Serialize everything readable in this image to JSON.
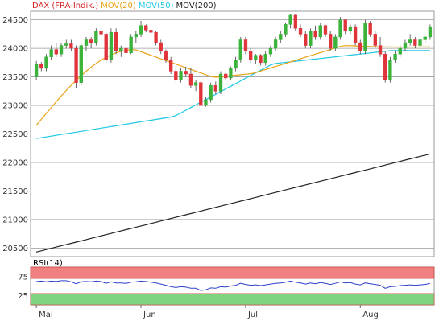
{
  "legend": {
    "items": [
      {
        "label": "DAX (FRA-Indik.)",
        "color": "#d62728"
      },
      {
        "label": "MOV(20)",
        "color": "#e8a317"
      },
      {
        "label": "MOV(50)",
        "color": "#1ec8e6"
      },
      {
        "label": "MOV(200)",
        "color": "#222222"
      }
    ]
  },
  "chart_data": [
    {
      "type": "candlestick",
      "title": "",
      "ylim": [
        20350,
        24650
      ],
      "y_ticks": [
        20500,
        21000,
        21500,
        22000,
        22500,
        23000,
        23500,
        24000,
        24500
      ],
      "x_labels": [
        {
          "label": "Mai",
          "index": 0
        },
        {
          "label": "Jun",
          "index": 21
        },
        {
          "label": "Jul",
          "index": 42
        },
        {
          "label": "Aug",
          "index": 65
        }
      ],
      "grid": true,
      "legend_position": "top-left",
      "colors": {
        "up": "#3bb33b",
        "down": "#e0343b",
        "mov20": "#e8a317",
        "mov50": "#1ec8e6",
        "mov200": "#222222"
      },
      "candles": [
        [
          23500,
          23780,
          23450,
          23720
        ],
        [
          23720,
          23760,
          23600,
          23650
        ],
        [
          23650,
          23900,
          23600,
          23850
        ],
        [
          23850,
          24050,
          23800,
          23980
        ],
        [
          23980,
          24100,
          23850,
          23900
        ],
        [
          23900,
          24100,
          23850,
          24050
        ],
        [
          24050,
          24150,
          24000,
          24080
        ],
        [
          24080,
          24150,
          23950,
          24000
        ],
        [
          24000,
          24050,
          23300,
          23400
        ],
        [
          23400,
          24100,
          23350,
          24050
        ],
        [
          24050,
          24200,
          23950,
          24150
        ],
        [
          24150,
          24200,
          24000,
          24100
        ],
        [
          24100,
          24350,
          24050,
          24300
        ],
        [
          24300,
          24380,
          24150,
          24250
        ],
        [
          24250,
          24280,
          23750,
          23800
        ],
        [
          23800,
          24350,
          23750,
          24280
        ],
        [
          24280,
          24350,
          23900,
          23950
        ],
        [
          23950,
          24050,
          23850,
          24000
        ],
        [
          24000,
          24120,
          23880,
          23920
        ],
        [
          23920,
          24250,
          23900,
          24200
        ],
        [
          24200,
          24300,
          24100,
          24250
        ],
        [
          24250,
          24480,
          24200,
          24400
        ],
        [
          24400,
          24420,
          24280,
          24320
        ],
        [
          24320,
          24350,
          24150,
          24280
        ],
        [
          24280,
          24300,
          24050,
          24100
        ],
        [
          24100,
          24150,
          23900,
          23950
        ],
        [
          23950,
          23980,
          23750,
          23800
        ],
        [
          23800,
          23850,
          23550,
          23600
        ],
        [
          23600,
          23700,
          23400,
          23450
        ],
        [
          23450,
          23650,
          23400,
          23600
        ],
        [
          23600,
          23680,
          23500,
          23550
        ],
        [
          23550,
          23650,
          23300,
          23350
        ],
        [
          23350,
          23450,
          23250,
          23400
        ],
        [
          23400,
          23420,
          22980,
          23000
        ],
        [
          23000,
          23150,
          22980,
          23100
        ],
        [
          23100,
          23400,
          23050,
          23350
        ],
        [
          23350,
          23420,
          23200,
          23250
        ],
        [
          23250,
          23600,
          23200,
          23550
        ],
        [
          23550,
          23600,
          23450,
          23480
        ],
        [
          23480,
          23680,
          23450,
          23650
        ],
        [
          23650,
          23850,
          23600,
          23800
        ],
        [
          23800,
          24200,
          23750,
          24150
        ],
        [
          24150,
          24200,
          23900,
          23950
        ],
        [
          23950,
          24000,
          23750,
          23800
        ],
        [
          23800,
          23900,
          23720,
          23880
        ],
        [
          23880,
          23900,
          23700,
          23750
        ],
        [
          23750,
          23950,
          23700,
          23900
        ],
        [
          23900,
          24050,
          23850,
          24000
        ],
        [
          24000,
          24200,
          23950,
          24150
        ],
        [
          24150,
          24300,
          24100,
          24250
        ],
        [
          24250,
          24450,
          24200,
          24420
        ],
        [
          24420,
          24600,
          24350,
          24580
        ],
        [
          24580,
          24600,
          24300,
          24350
        ],
        [
          24350,
          24420,
          24200,
          24250
        ],
        [
          24250,
          24300,
          24000,
          24050
        ],
        [
          24050,
          24350,
          24000,
          24300
        ],
        [
          24300,
          24400,
          24150,
          24200
        ],
        [
          24200,
          24450,
          24150,
          24400
        ],
        [
          24400,
          24420,
          24200,
          24250
        ],
        [
          24250,
          24300,
          23950,
          24000
        ],
        [
          24000,
          24250,
          23950,
          24200
        ],
        [
          24200,
          24550,
          24150,
          24500
        ],
        [
          24500,
          24520,
          24250,
          24300
        ],
        [
          24300,
          24420,
          24250,
          24380
        ],
        [
          24380,
          24420,
          24050,
          24100
        ],
        [
          24100,
          24150,
          23900,
          23950
        ],
        [
          23950,
          24500,
          23900,
          24450
        ],
        [
          24450,
          24480,
          24200,
          24250
        ],
        [
          24250,
          24300,
          24000,
          24050
        ],
        [
          24050,
          24200,
          23850,
          23900
        ],
        [
          23900,
          23950,
          23400,
          23450
        ],
        [
          23450,
          23850,
          23400,
          23800
        ],
        [
          23800,
          23950,
          23750,
          23900
        ],
        [
          23900,
          24050,
          23850,
          24000
        ],
        [
          24000,
          24150,
          23950,
          24100
        ],
        [
          24100,
          24250,
          24050,
          24150
        ],
        [
          24150,
          24200,
          24000,
          24050
        ],
        [
          24050,
          24200,
          24000,
          24150
        ],
        [
          24150,
          24250,
          24100,
          24200
        ],
        [
          24200,
          24420,
          24150,
          24380
        ]
      ],
      "mov20_range": [
        22650,
        24050
      ],
      "mov50_range": [
        22420,
        23960
      ],
      "mov200_range": [
        20430,
        22150
      ]
    },
    {
      "type": "line",
      "title": "RSI(14)",
      "ylim": [
        0,
        100
      ],
      "y_ticks": [
        25,
        75
      ],
      "bands": [
        {
          "from": 70,
          "to": 100,
          "color": "#f08080"
        },
        {
          "from": 0,
          "to": 30,
          "color": "#7fd47f"
        }
      ],
      "series": [
        {
          "color": "#3040c8",
          "values": [
            62,
            63,
            61,
            63,
            62,
            64,
            64,
            61,
            56,
            61,
            62,
            61,
            63,
            62,
            57,
            61,
            58,
            58,
            57,
            60,
            61,
            63,
            62,
            60,
            58,
            55,
            52,
            48,
            46,
            48,
            47,
            44,
            44,
            38,
            40,
            45,
            44,
            48,
            47,
            50,
            52,
            57,
            54,
            52,
            53,
            51,
            53,
            55,
            57,
            58,
            60,
            63,
            60,
            58,
            55,
            58,
            56,
            59,
            57,
            54,
            57,
            61,
            58,
            59,
            55,
            53,
            58,
            56,
            54,
            52,
            44,
            48,
            49,
            51,
            52,
            53,
            52,
            53,
            54,
            57
          ]
        }
      ]
    }
  ]
}
